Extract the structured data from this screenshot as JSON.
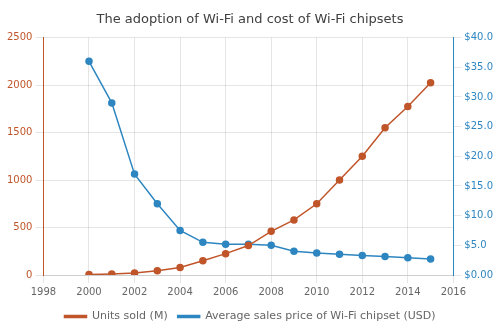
{
  "chart_data": {
    "type": "line",
    "title": "The adoption of Wi-Fi and cost of Wi-Fi chipsets",
    "x": [
      2000,
      2001,
      2002,
      2003,
      2004,
      2005,
      2006,
      2007,
      2008,
      2009,
      2010,
      2011,
      2012,
      2013,
      2014,
      2015
    ],
    "series": [
      {
        "name": "Units sold (M)",
        "color": "#c0552a",
        "marker": "circle",
        "line_style": "solid",
        "values": [
          5,
          10,
          20,
          45,
          80,
          150,
          225,
          310,
          460,
          580,
          750,
          1000,
          1250,
          1550,
          1775,
          2025
        ]
      },
      {
        "name": "Average sales price of Wi-Fi chipset (USD)",
        "color": "#2e86c1",
        "marker": "circle",
        "line_style": "solid",
        "axis": "y2",
        "values": [
          36,
          29,
          17,
          12,
          7.5,
          5.5,
          5.2,
          5.2,
          5.0,
          4.0,
          3.7,
          3.5,
          3.3,
          3.1,
          2.9,
          2.7
        ]
      }
    ],
    "xlim": [
      1998,
      2016
    ],
    "xticks": [
      1998,
      2000,
      2002,
      2004,
      2006,
      2008,
      2010,
      2012,
      2014,
      2016
    ],
    "ylim": [
      0,
      2500
    ],
    "yticks": [
      0,
      500,
      1000,
      1500,
      2000,
      2500
    ],
    "y2lim": [
      0,
      40
    ],
    "y2ticks": [
      {
        "value": 0,
        "label": "$0.00"
      },
      {
        "value": 5,
        "label": "$5.0"
      },
      {
        "value": 10,
        "label": "$10.0"
      },
      {
        "value": 15,
        "label": "$15.0"
      },
      {
        "value": 20,
        "label": "$20.0"
      },
      {
        "value": 25,
        "label": "$25.0"
      },
      {
        "value": 30,
        "label": "$30.0"
      },
      {
        "value": 35,
        "label": "$35.0"
      },
      {
        "value": 40,
        "label": "$40.0"
      }
    ],
    "grid": true,
    "legend": "bottom"
  }
}
